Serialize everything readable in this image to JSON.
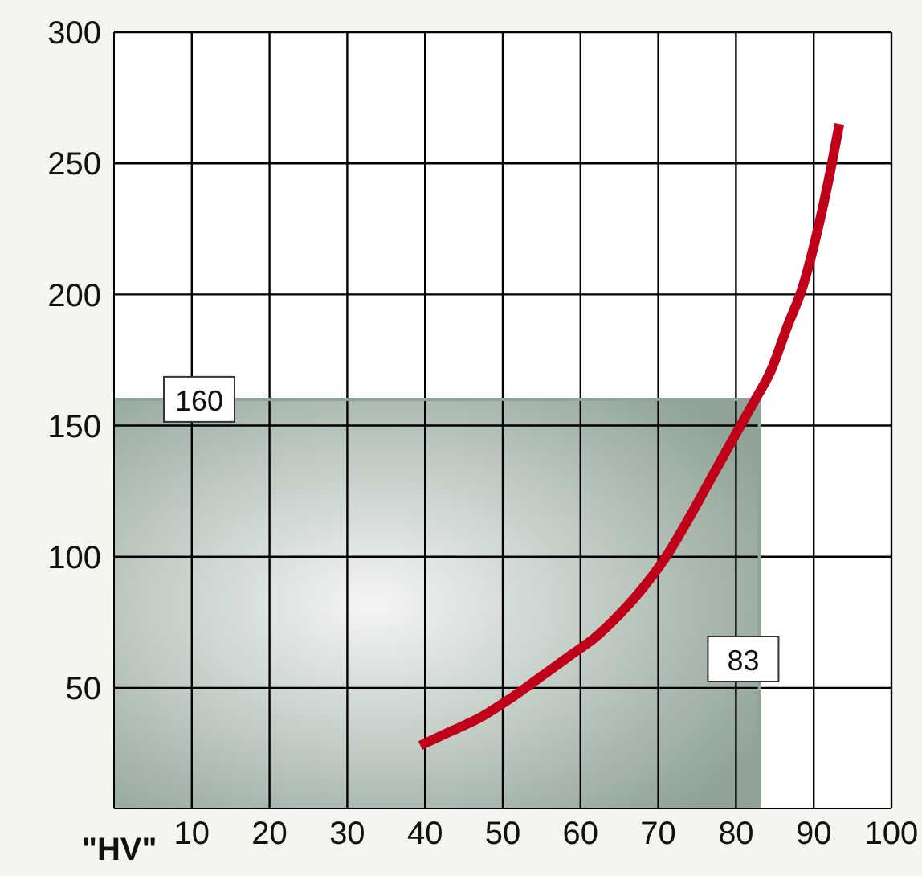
{
  "chart_data": {
    "type": "line",
    "xlabel": "\"HV\"",
    "x": [
      39.4,
      43,
      47.3,
      51,
      55.5,
      59,
      61.8,
      65,
      68,
      71,
      74.2,
      77,
      80.4,
      82.5,
      84.5,
      86.5,
      88.7,
      90.3,
      91.8,
      93.3
    ],
    "series": [
      {
        "color": "#c0001a",
        "values": [
          28,
          33,
          39,
          46,
          55.5,
          63,
          69,
          78,
          88,
          100,
          116,
          131,
          149,
          160,
          171,
          187,
          204,
          222,
          242,
          265
        ]
      }
    ],
    "xlim": [
      0,
      100
    ],
    "xticks": [
      10,
      20,
      30,
      40,
      50,
      60,
      70,
      80,
      90,
      100
    ],
    "ylim": [
      4,
      300
    ],
    "yticks": [
      50,
      100,
      150,
      200,
      250,
      300
    ],
    "grid": true,
    "marker": "none",
    "line_style": "solid",
    "ref_lines": [
      {
        "axis": "y",
        "value": 160,
        "label": "160",
        "color": "#8fa396"
      },
      {
        "axis": "x",
        "value": 83,
        "label": "83",
        "color": "#8fa396"
      }
    ]
  }
}
